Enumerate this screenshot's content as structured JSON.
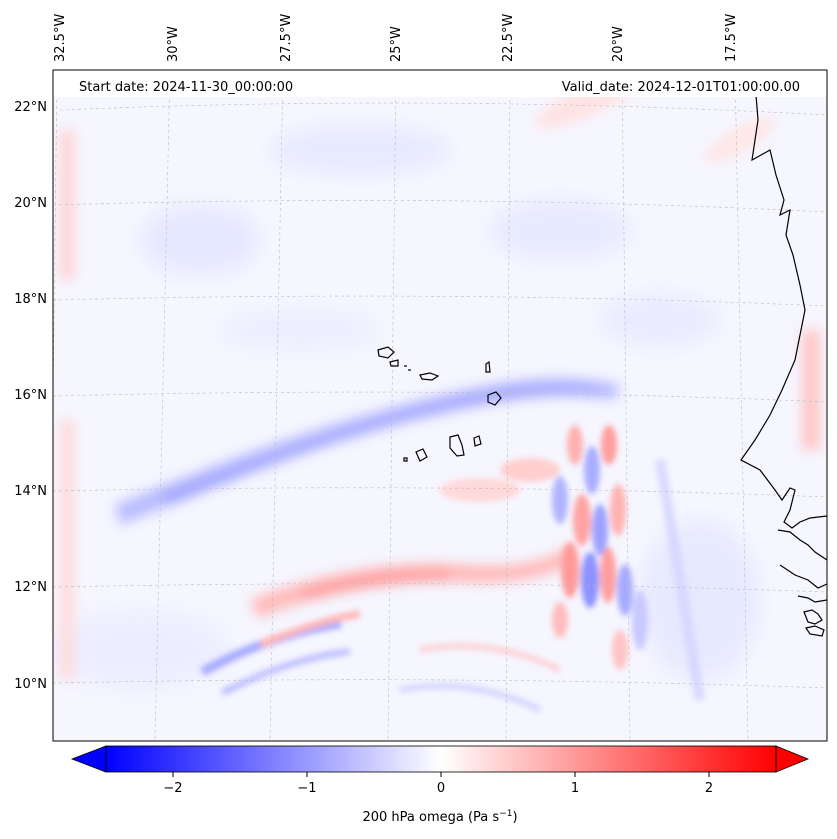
{
  "map": {
    "header_left": "Start date: 2024-11-30_00:00:00",
    "header_right": "Valid_date: 2024-12-01T01:00:00.00",
    "lon_labels": [
      "32.5°W",
      "30°W",
      "27.5°W",
      "25°W",
      "22.5°W",
      "20°W",
      "17.5°W"
    ],
    "lat_labels": [
      "22°N",
      "20°N",
      "18°N",
      "16°N",
      "14°N",
      "12°N",
      "10°N"
    ],
    "colors": {
      "negative": "#0000ff",
      "neutral": "#ffffff",
      "positive": "#ff0000",
      "coast": "#000000",
      "grid": "#bbbbbb"
    }
  },
  "colorbar": {
    "label_main": "200 hPa omega (Pa s",
    "label_exp": "−1",
    "label_close": ")",
    "ticks": [
      "−2",
      "−1",
      "0",
      "1",
      "2"
    ],
    "tick_values": [
      -2,
      -1,
      0,
      1,
      2
    ],
    "range": [
      -2.5,
      2.5
    ]
  }
}
